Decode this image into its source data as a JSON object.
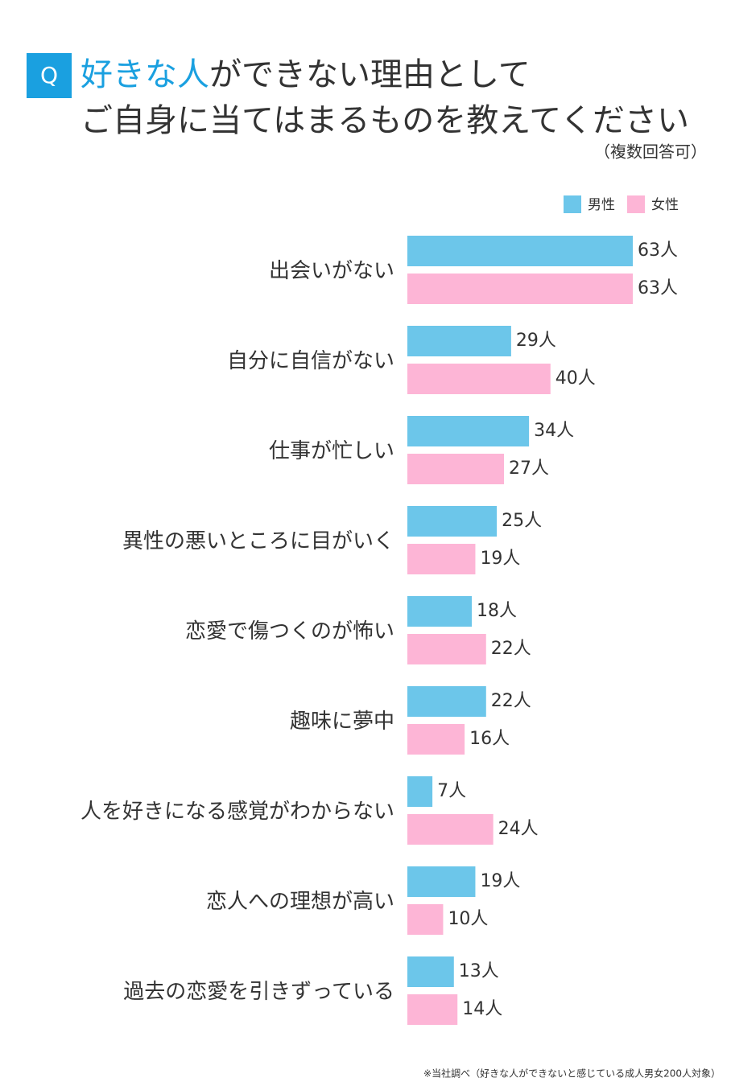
{
  "question_mark": "Q",
  "chart_data": {
    "type": "hbar",
    "title_highlight": "好きな人",
    "title_line1": "ができない理由として",
    "title_line2": "ご自身に当てはまるものを教えてください",
    "subtitle": "（複数回答可）",
    "categories": [
      "出会いがない",
      "自分に自信がない",
      "仕事が忙しい",
      "異性の悪いところに目がいく",
      "恋愛で傷つくのが怖い",
      "趣味に夢中",
      "人を好きになる感覚がわからない",
      "恋人への理想が高い",
      "過去の恋愛を引きずっている"
    ],
    "series": [
      {
        "name": "男性",
        "color": "#6cc6ea",
        "values": [
          63,
          29,
          34,
          25,
          18,
          22,
          7,
          19,
          13
        ],
        "value_labels": [
          "63人",
          "29人",
          "34人",
          "25人",
          "18人",
          "22人",
          "7人",
          "19人",
          "13人"
        ]
      },
      {
        "name": "女性",
        "color": "#fdb5d6",
        "values": [
          63,
          40,
          27,
          19,
          22,
          16,
          24,
          10,
          14
        ],
        "value_labels": [
          "63人",
          "40人",
          "27人",
          "19人",
          "22人",
          "16人",
          "24人",
          "10人",
          "14人"
        ]
      }
    ],
    "legend": "top-right",
    "footnote": "※当社調べ（好きな人ができないと感じている成人男女200人対象）"
  }
}
